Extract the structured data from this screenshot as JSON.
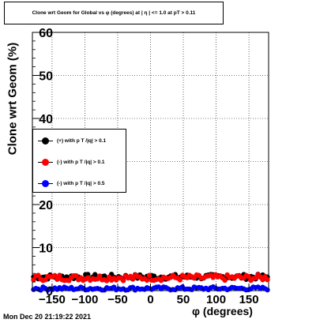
{
  "chart_data": {
    "type": "scatter",
    "title": "Clone wrt Geom for Global vs φ (degrees) at | η | <= 1.0 at pT > 0.11",
    "xlabel": "φ (degrees)",
    "ylabel": "Clone wrt Geom (%)",
    "xlim": [
      -180,
      180
    ],
    "ylim": [
      0,
      60
    ],
    "x_ticks": [
      -150,
      -100,
      -50,
      0,
      50,
      100,
      150
    ],
    "x_tick_labels": [
      "−150",
      "−100",
      "−50",
      "0",
      "50",
      "100",
      "150"
    ],
    "y_ticks": [
      0,
      10,
      20,
      30,
      40,
      50,
      60
    ],
    "y_tick_labels": [
      "0",
      "10",
      "20",
      "30",
      "40",
      "50",
      "60"
    ],
    "grid": true,
    "legend_placement": "left-middle",
    "series": [
      {
        "name": "(+) with p T /|q| > 0.1",
        "color": "#000000",
        "y_mean": 3.2,
        "y_spread": 0.6
      },
      {
        "name": "(-) with p T /|q| > 0.1",
        "color": "#ff0000",
        "y_mean": 3.0,
        "y_spread": 0.7
      },
      {
        "name": "(-) with p T /|q| > 0.5",
        "color": "#0000ff",
        "y_mean": 0.5,
        "y_spread": 0.4
      }
    ],
    "x_bins": 100
  },
  "footer": {
    "timestamp": "Mon Dec 20 21:19:22 2021"
  }
}
